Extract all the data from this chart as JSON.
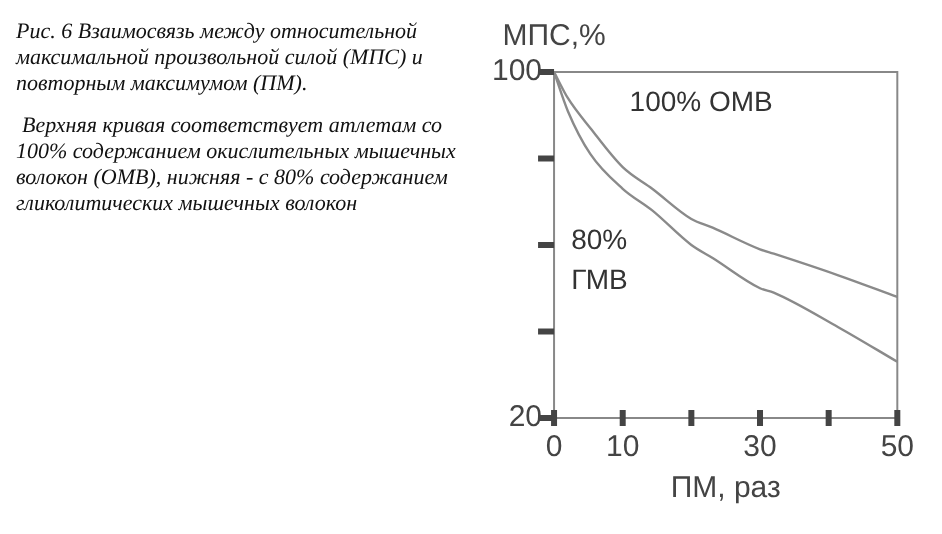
{
  "chart_data": {
    "type": "line",
    "title": "Рис. 6 Взаимосвязь между относительной максимальной произвольной силой (МПС) и повторным максимумом (ПМ).",
    "subtitle": "Верхняя кривая соответствует атлетам со 100% содержанием окислительных мышечных волокон (ОМВ), нижняя - с 80% содержанием гликолитических мышечных волокон",
    "xlabel": "ПМ, раз",
    "ylabel": "МПС,%",
    "xlim": [
      0,
      50
    ],
    "xticks": [
      0,
      10,
      {
        "value": 20,
        "label": null
      },
      30,
      {
        "value": 40,
        "label": null
      },
      50
    ],
    "ylim": [
      20,
      100
    ],
    "yticks": [
      20,
      {
        "value": 40,
        "label": null
      },
      {
        "value": 60,
        "label": null
      },
      {
        "value": 80,
        "label": null
      },
      100
    ],
    "grid": false,
    "legend": false,
    "marker": "none",
    "line_style": "solid",
    "series": [
      {
        "name": "100% ОМВ",
        "color": "#8a8a8a",
        "x": [
          0,
          2,
          5.3,
          10,
          14.3,
          20,
          23.1,
          30,
          32,
          41.4,
          50
        ],
        "values": [
          100,
          94,
          87,
          78,
          73,
          66,
          64,
          59,
          58,
          53,
          48
        ]
      },
      {
        "name": "80% ГМВ",
        "color": "#8a8a8a",
        "x": [
          0,
          2,
          5.3,
          10,
          14.3,
          20,
          23.1,
          30,
          32,
          41.4,
          50
        ],
        "values": [
          100,
          91,
          81,
          73,
          68,
          60,
          57,
          50,
          49,
          41,
          33
        ]
      }
    ]
  }
}
